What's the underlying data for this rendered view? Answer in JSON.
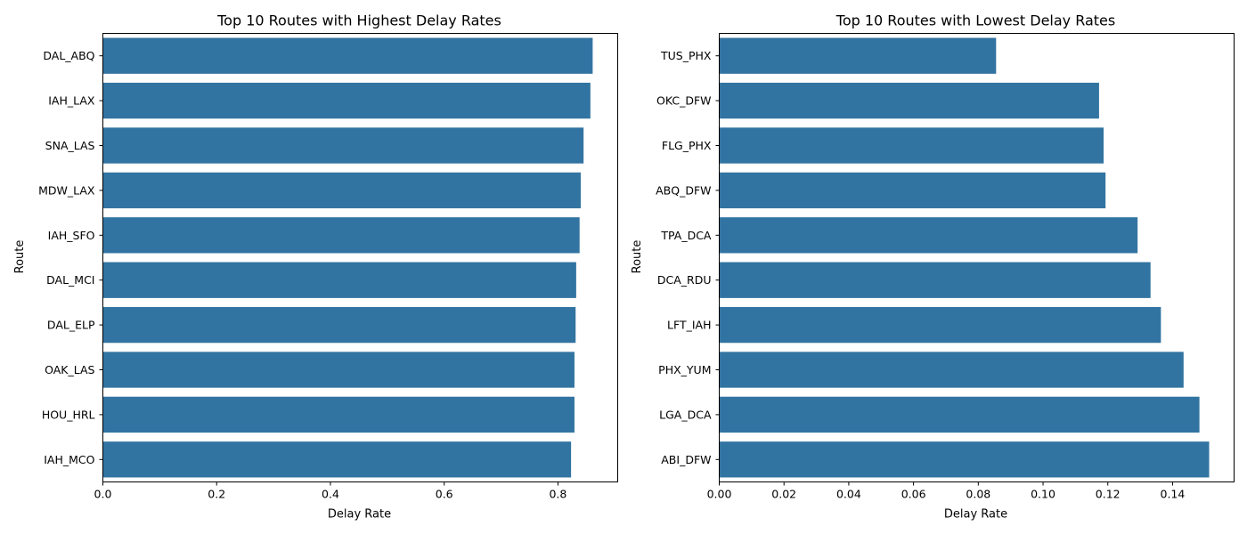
{
  "chart_data": [
    {
      "type": "bar",
      "orientation": "horizontal",
      "title": "Top 10 Routes with Highest Delay Rates",
      "xlabel": "Delay Rate",
      "ylabel": "Route",
      "categories": [
        "DAL_ABQ",
        "IAH_LAX",
        "SNA_LAS",
        "MDW_LAX",
        "IAH_SFO",
        "DAL_MCI",
        "DAL_ELP",
        "OAK_LAS",
        "HOU_HRL",
        "IAH_MCO"
      ],
      "values": [
        0.861,
        0.857,
        0.845,
        0.84,
        0.838,
        0.832,
        0.831,
        0.829,
        0.829,
        0.823
      ],
      "xlim": [
        0,
        0.905
      ],
      "xticks": [
        0.0,
        0.2,
        0.4,
        0.6,
        0.8
      ],
      "xtick_labels": [
        "0.0",
        "0.2",
        "0.4",
        "0.6",
        "0.8"
      ],
      "bar_color": "#3274a1",
      "grid": false,
      "legend": "none"
    },
    {
      "type": "bar",
      "orientation": "horizontal",
      "title": "Top 10 Routes with Lowest Delay Rates",
      "xlabel": "Delay Rate",
      "ylabel": "Route",
      "categories": [
        "TUS_PHX",
        "OKC_DFW",
        "FLG_PHX",
        "ABQ_DFW",
        "TPA_DCA",
        "DCA_RDU",
        "LFT_IAH",
        "PHX_YUM",
        "LGA_DCA",
        "ABI_DFW"
      ],
      "values": [
        0.0855,
        0.1173,
        0.1187,
        0.1193,
        0.1292,
        0.1332,
        0.1364,
        0.1434,
        0.1483,
        0.1513
      ],
      "xlim": [
        0,
        0.159
      ],
      "xticks": [
        0.0,
        0.02,
        0.04,
        0.06,
        0.08,
        0.1,
        0.12,
        0.14
      ],
      "xtick_labels": [
        "0.00",
        "0.02",
        "0.04",
        "0.06",
        "0.08",
        "0.10",
        "0.12",
        "0.14"
      ],
      "bar_color": "#3274a1",
      "grid": false,
      "legend": "none"
    }
  ]
}
